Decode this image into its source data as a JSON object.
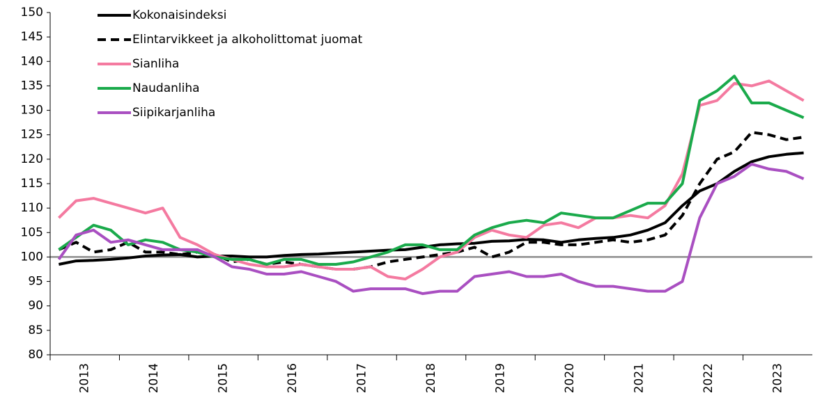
{
  "chart_data": {
    "type": "line",
    "categories": [
      "2013",
      null,
      null,
      null,
      "2014",
      null,
      null,
      null,
      "2015",
      null,
      null,
      null,
      "2016",
      null,
      null,
      null,
      "2017",
      null,
      null,
      null,
      "2018",
      null,
      null,
      null,
      "2019",
      null,
      null,
      null,
      "2020",
      null,
      null,
      null,
      "2021",
      null,
      null,
      null,
      "2022",
      null,
      null,
      null,
      "2023",
      null,
      null,
      null
    ],
    "series": [
      {
        "name": "Kokonaisindeksi",
        "color": "#000000",
        "dash": false,
        "values": [
          98.5,
          99.2,
          99.3,
          99.5,
          99.8,
          100.2,
          100.4,
          100.5,
          100,
          100.2,
          100.2,
          100,
          100,
          100.3,
          100.5,
          100.6,
          100.8,
          101,
          101.2,
          101.4,
          101.5,
          102,
          102.5,
          102.7,
          102.8,
          103.2,
          103.3,
          103.6,
          103.5,
          103,
          103.5,
          103.8,
          104,
          104.5,
          105.5,
          107,
          110.5,
          113.5,
          115,
          117.5,
          119.5,
          120.5,
          121,
          121.3
        ]
      },
      {
        "name": "Elintarvikkeet ja alkoholittomat juomat",
        "color": "#000000",
        "dash": true,
        "values": [
          101.5,
          103,
          101,
          101.5,
          103,
          101,
          101,
          100.5,
          101,
          100.5,
          99,
          99.5,
          98.5,
          99,
          98.5,
          98,
          97.5,
          97.5,
          98,
          99,
          99.5,
          100,
          100.5,
          101,
          102,
          100,
          101,
          103,
          103,
          102.5,
          102.5,
          103,
          103.5,
          103,
          103.5,
          104.5,
          108.5,
          115,
          120,
          121.5,
          125.5,
          125,
          124,
          124.5
        ]
      },
      {
        "name": "Sianliha",
        "color": "#f47aa0",
        "dash": false,
        "values": [
          108,
          111.5,
          112,
          111,
          110,
          109,
          110,
          104,
          102.5,
          100.5,
          99.5,
          98.5,
          98,
          98,
          98.5,
          98,
          97.5,
          97.5,
          98,
          96,
          95.5,
          97.5,
          100,
          101,
          104,
          105.5,
          104.5,
          104,
          106.5,
          107,
          106,
          108,
          108,
          108.5,
          108,
          110.5,
          117,
          131,
          132,
          135.5,
          135,
          136,
          134,
          132
        ]
      },
      {
        "name": "Naudanliha",
        "color": "#1aaa4b",
        "dash": false,
        "values": [
          101.5,
          104,
          106.5,
          105.5,
          102.5,
          103.5,
          103,
          101.5,
          101,
          100,
          99.5,
          99.5,
          98.5,
          99.5,
          99.5,
          98.5,
          98.5,
          99,
          100,
          101,
          102.5,
          102.5,
          101.5,
          101.5,
          104.5,
          106,
          107,
          107.5,
          107,
          109,
          108.5,
          108,
          108,
          109.5,
          111,
          111,
          115,
          132,
          134,
          137,
          131.5,
          131.5,
          130,
          128.5
        ]
      },
      {
        "name": "Siipikarjanliha",
        "color": "#a94fc1",
        "dash": false,
        "values": [
          99.5,
          104.5,
          105.5,
          103,
          103.5,
          102.5,
          101.5,
          101.5,
          101.5,
          100,
          98,
          97.5,
          96.5,
          96.5,
          97,
          96,
          95,
          93,
          93.5,
          93.5,
          93.5,
          92.5,
          93,
          93,
          96,
          96.5,
          97,
          96,
          96,
          96.5,
          95,
          94,
          94,
          93.5,
          93,
          93,
          95,
          108,
          115,
          116.5,
          119,
          118,
          117.5,
          116
        ]
      }
    ],
    "hline": 100,
    "hline_color": "#8c8c8c",
    "ylim": [
      80,
      150
    ],
    "yticks": [
      80,
      85,
      90,
      95,
      100,
      105,
      110,
      115,
      120,
      125,
      130,
      135,
      140,
      145,
      150
    ],
    "grid": false,
    "legend": "top-left"
  }
}
